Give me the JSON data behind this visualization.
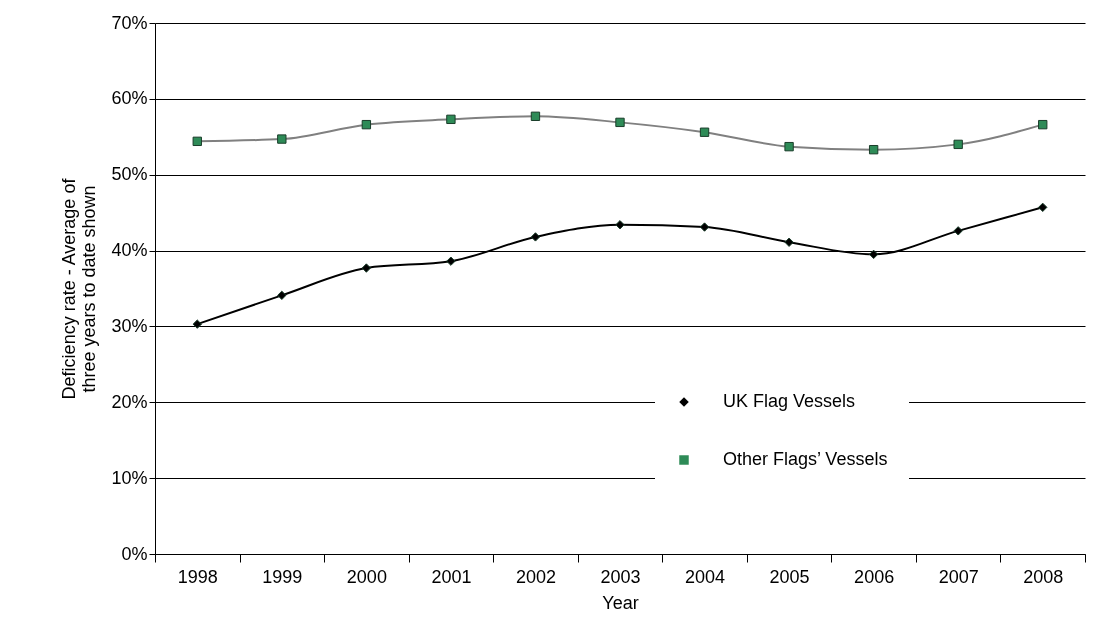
{
  "chart_data": {
    "type": "line",
    "xlabel": "Year",
    "ylabel": "Deficiency rate - Average of\nthree years to date shown",
    "categories": [
      "1998",
      "1999",
      "2000",
      "2001",
      "2002",
      "2003",
      "2004",
      "2005",
      "2006",
      "2007",
      "2008"
    ],
    "series": [
      {
        "name": "UK Flag Vessels",
        "color": "#000000",
        "marker": "diamond",
        "values": [
          30.3,
          34.1,
          37.7,
          38.6,
          41.8,
          43.4,
          43.1,
          41.1,
          39.5,
          42.6,
          45.7
        ]
      },
      {
        "name": "Other Flags’ Vessels",
        "color": "#808080",
        "marker": "square",
        "values": [
          54.4,
          54.7,
          56.6,
          57.3,
          57.7,
          56.9,
          55.6,
          53.7,
          53.3,
          54.0,
          56.6
        ]
      }
    ],
    "ylim": [
      0,
      70
    ],
    "yticks": [
      {
        "value": 0,
        "label": "0%"
      },
      {
        "value": 10,
        "label": "10%"
      },
      {
        "value": 20,
        "label": "20%"
      },
      {
        "value": 30,
        "label": "30%"
      },
      {
        "value": 40,
        "label": "40%"
      },
      {
        "value": 50,
        "label": "50%"
      },
      {
        "value": 60,
        "label": "60%"
      },
      {
        "value": 70,
        "label": "70%"
      }
    ],
    "grid": "y",
    "legend": "bottom right"
  }
}
